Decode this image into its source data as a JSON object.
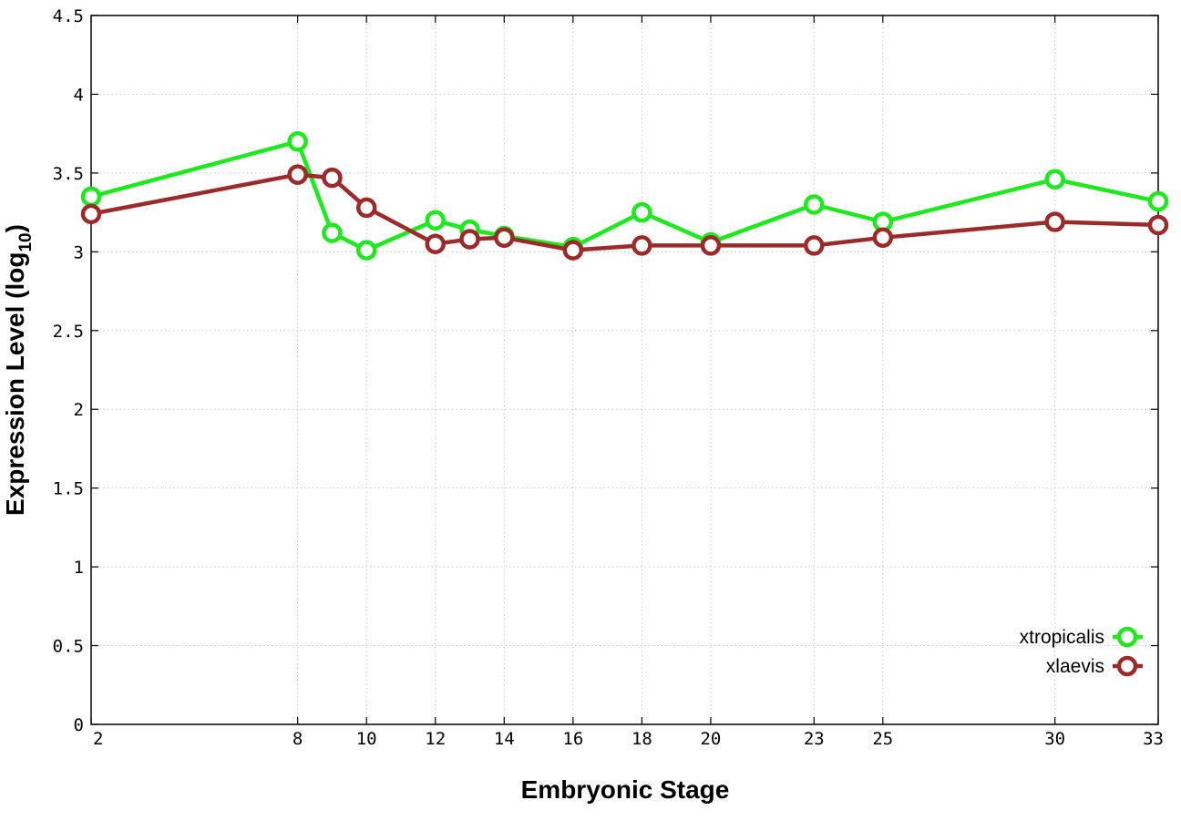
{
  "chart_data": {
    "type": "line",
    "title": "",
    "xlabel": "Embryonic Stage",
    "ylabel": "Expression Level (log",
    "ylabel_subscript": "10",
    "ylabel_close": ")",
    "xlim": [
      2,
      33
    ],
    "ylim": [
      0,
      4.5
    ],
    "x_ticks": [
      2,
      8,
      10,
      12,
      14,
      16,
      18,
      20,
      23,
      25,
      30,
      33
    ],
    "y_ticks": [
      0,
      0.5,
      1,
      1.5,
      2,
      2.5,
      3,
      3.5,
      4,
      4.5
    ],
    "y_tick_labels": [
      "0",
      "0.5",
      "1",
      "1.5",
      "2",
      "2.5",
      "3",
      "3.5",
      "4",
      "4.5"
    ],
    "grid": true,
    "legend_position": "bottom-right",
    "series": [
      {
        "name": "xtropicalis",
        "color": "#1ee81e",
        "x": [
          2,
          8,
          9,
          10,
          12,
          13,
          14,
          16,
          18,
          20,
          23,
          25,
          30,
          33
        ],
        "y": [
          3.35,
          3.7,
          3.12,
          3.01,
          3.2,
          3.14,
          3.1,
          3.03,
          3.25,
          3.06,
          3.3,
          3.19,
          3.46,
          3.32
        ]
      },
      {
        "name": "xlaevis",
        "color": "#9b2a2a",
        "x": [
          2,
          8,
          9,
          10,
          12,
          13,
          14,
          16,
          18,
          20,
          23,
          25,
          30,
          33
        ],
        "y": [
          3.24,
          3.49,
          3.47,
          3.28,
          3.05,
          3.08,
          3.09,
          3.01,
          3.04,
          3.04,
          3.04,
          3.09,
          3.19,
          3.17
        ]
      }
    ]
  }
}
